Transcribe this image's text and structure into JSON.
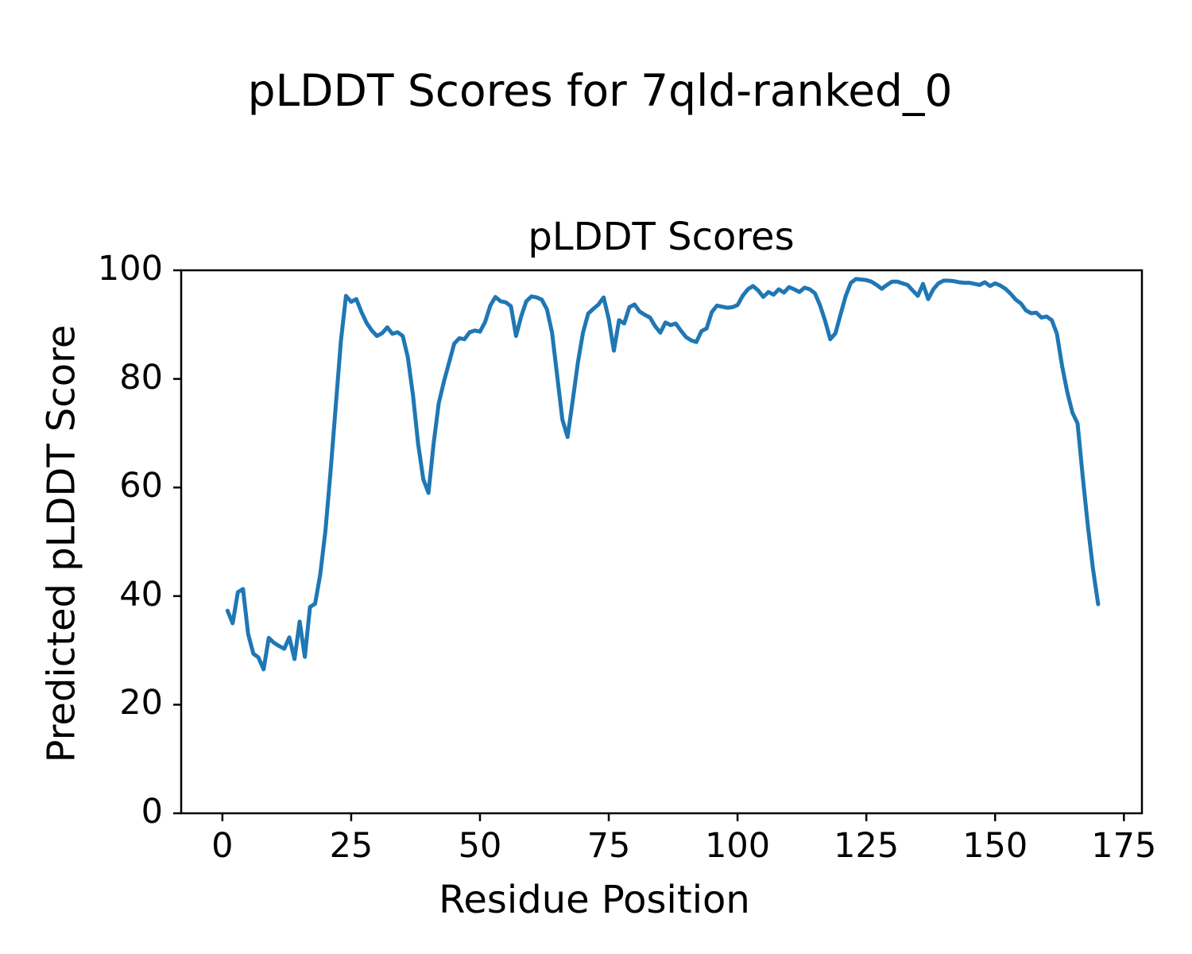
{
  "figure_title": "pLDDT Scores for 7qld-ranked_0",
  "axes": {
    "title": "pLDDT Scores",
    "xlabel": "Residue Position",
    "ylabel": "Predicted pLDDT Score"
  },
  "chart_data": {
    "type": "line",
    "title": "pLDDT Scores",
    "xlabel": "Residue Position",
    "ylabel": "Predicted pLDDT Score",
    "x_tick_values": [
      0,
      25,
      50,
      75,
      100,
      125,
      150,
      175
    ],
    "y_tick_values": [
      0,
      20,
      40,
      60,
      80,
      100
    ],
    "xlim": [
      -8.0,
      178.5
    ],
    "ylim": [
      0,
      100
    ],
    "grid": false,
    "legend": "none",
    "line_color": "#1f77b4",
    "axis_color": "#000000",
    "series": [
      {
        "name": "pLDDT",
        "x_start": 1,
        "x_step": 1,
        "x_end": 170,
        "values": [
          37.3,
          35.0,
          40.7,
          41.3,
          33.0,
          29.4,
          28.7,
          26.5,
          32.3,
          31.4,
          30.8,
          30.3,
          32.4,
          28.4,
          35.3,
          28.8,
          38.0,
          38.6,
          44.0,
          52.0,
          63.0,
          75.0,
          87.0,
          95.3,
          94.2,
          94.7,
          92.3,
          90.3,
          88.9,
          87.9,
          88.4,
          89.5,
          88.3,
          88.6,
          87.9,
          84.0,
          77.0,
          68.0,
          61.5,
          59.0,
          68.0,
          75.5,
          79.5,
          83.0,
          86.5,
          87.5,
          87.3,
          88.6,
          88.9,
          88.7,
          90.5,
          93.5,
          95.1,
          94.3,
          94.1,
          93.4,
          87.9,
          91.5,
          94.3,
          95.2,
          95.0,
          94.6,
          92.8,
          88.5,
          80.5,
          72.5,
          69.3,
          76.0,
          83.0,
          88.5,
          92.0,
          92.9,
          93.7,
          95.0,
          91.0,
          85.2,
          90.8,
          90.2,
          93.2,
          93.7,
          92.4,
          91.8,
          91.3,
          89.7,
          88.5,
          90.4,
          89.9,
          90.2,
          88.9,
          87.7,
          87.1,
          86.8,
          88.8,
          89.3,
          92.3,
          93.5,
          93.3,
          93.1,
          93.2,
          93.6,
          95.3,
          96.5,
          97.1,
          96.3,
          95.1,
          96.0,
          95.5,
          96.5,
          95.9,
          96.9,
          96.5,
          96.0,
          96.8,
          96.5,
          95.8,
          93.6,
          90.7,
          87.3,
          88.4,
          91.9,
          95.3,
          97.7,
          98.4,
          98.3,
          98.2,
          97.9,
          97.3,
          96.6,
          97.3,
          97.9,
          97.9,
          97.6,
          97.3,
          96.3,
          95.3,
          97.5,
          94.7,
          96.5,
          97.6,
          98.1,
          98.1,
          98.0,
          97.8,
          97.7,
          97.7,
          97.5,
          97.3,
          97.8,
          97.1,
          97.6,
          97.2,
          96.6,
          95.7,
          94.6,
          93.9,
          92.6,
          92.1,
          92.2,
          91.3,
          91.5,
          90.8,
          88.3,
          82.4,
          77.6,
          73.8,
          71.8,
          62.0,
          53.0,
          45.0,
          38.5
        ]
      }
    ]
  }
}
